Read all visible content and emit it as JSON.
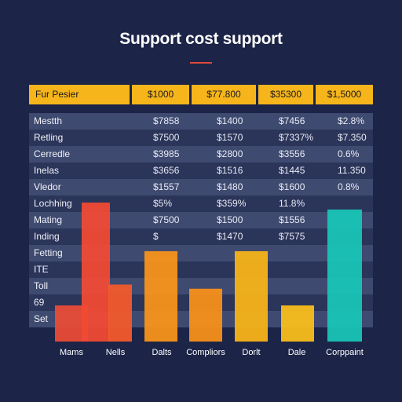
{
  "title": "Support cost support",
  "table": {
    "headers": [
      "Fur Pesier",
      "$1000",
      "$77.800",
      "$35300",
      "$1,5000"
    ],
    "rows": [
      [
        "Mestth",
        "$7858",
        "$1400",
        "$7456",
        "$2.8%"
      ],
      [
        "Retling",
        "$7500",
        "$1570",
        "$7337%",
        "$7.350"
      ],
      [
        "Cerredle",
        "$3985",
        "$2800",
        "$3556",
        "0.6%"
      ],
      [
        "Inelas",
        "$3656",
        "$1516",
        "$1445",
        "11.350"
      ],
      [
        "Vledor",
        "$1557",
        "$1480",
        "$1600",
        "0.8%"
      ],
      [
        "Lochhing",
        "$5%",
        "$359%",
        "11.8%",
        ""
      ],
      [
        "Mating",
        "$7500",
        "$1500",
        "$1556",
        ""
      ],
      [
        "Inding",
        "$",
        "$1470",
        "$7575",
        ""
      ],
      [
        "Fetting",
        "",
        "",
        "",
        ""
      ],
      [
        "ITE",
        "",
        "",
        "",
        ""
      ],
      [
        "Toll",
        "",
        "",
        "",
        ""
      ],
      [
        "69",
        "",
        "",
        "",
        ""
      ],
      [
        "Set",
        "",
        "",
        "",
        ""
      ]
    ]
  },
  "chart_data": {
    "type": "bar",
    "title": "Support cost support",
    "categories": [
      "Mams",
      "Nells",
      "Dalts",
      "Compliors",
      "Dorlt",
      "Dale",
      "Corppaint"
    ],
    "ylim": [
      0,
      100
    ],
    "bars": [
      {
        "category": "Mams",
        "value": 26,
        "color": "#e84c36"
      },
      {
        "category": "Mams",
        "value": 100,
        "color": "#f04a35"
      },
      {
        "category": "Nells",
        "value": 41,
        "color": "#f25a2c"
      },
      {
        "category": "Dalts",
        "value": 65,
        "color": "#f7931b"
      },
      {
        "category": "Compliors",
        "value": 38,
        "color": "#f7901a"
      },
      {
        "category": "Dorlt",
        "value": 65,
        "color": "#f7b318"
      },
      {
        "category": "Dale",
        "value": 26,
        "color": "#f9be1b"
      },
      {
        "category": "Corppaint",
        "value": 95,
        "color": "#19c4b6"
      }
    ]
  }
}
